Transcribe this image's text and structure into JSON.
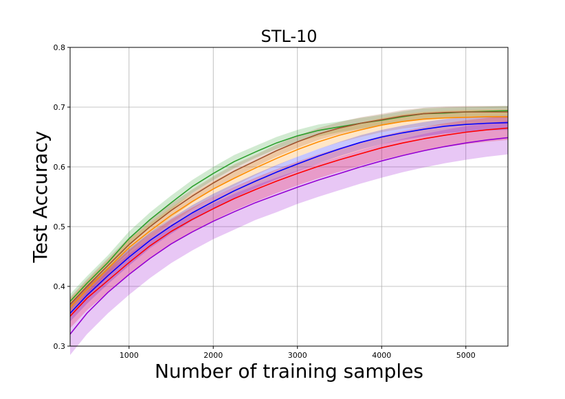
{
  "chart_data": {
    "type": "line",
    "title": "STL-10",
    "xlabel": "Number of training samples",
    "ylabel": "Test Accuracy",
    "xlim": [
      300,
      5500
    ],
    "ylim": [
      0.3,
      0.8
    ],
    "xticks": [
      1000,
      2000,
      3000,
      4000,
      5000
    ],
    "yticks": [
      0.3,
      0.4,
      0.5,
      0.6,
      0.7,
      0.8
    ],
    "xtick_labels": [
      "1000",
      "2000",
      "3000",
      "4000",
      "5000"
    ],
    "ytick_labels": [
      "0.3",
      "0.4",
      "0.5",
      "0.6",
      "0.7",
      "0.8"
    ],
    "grid": true,
    "legend": "none",
    "x": [
      300,
      500,
      750,
      1000,
      1250,
      1500,
      1750,
      2000,
      2250,
      2500,
      2750,
      3000,
      3250,
      3500,
      3750,
      4000,
      4250,
      4500,
      4750,
      5000,
      5250,
      5500
    ],
    "series": [
      {
        "color": "#2ca02c",
        "values": [
          0.375,
          0.405,
          0.44,
          0.48,
          0.512,
          0.54,
          0.567,
          0.589,
          0.609,
          0.625,
          0.64,
          0.652,
          0.661,
          0.667,
          0.673,
          0.678,
          0.684,
          0.689,
          0.69,
          0.692,
          0.693,
          0.694
        ],
        "band": [
          0.012,
          0.012,
          0.012,
          0.012,
          0.012,
          0.012,
          0.011,
          0.011,
          0.011,
          0.01,
          0.01,
          0.01,
          0.01,
          0.009,
          0.009,
          0.009,
          0.009,
          0.009,
          0.009,
          0.008,
          0.008,
          0.008
        ]
      },
      {
        "color": "#a0522d",
        "values": [
          0.37,
          0.4,
          0.435,
          0.47,
          0.5,
          0.527,
          0.551,
          0.573,
          0.593,
          0.61,
          0.627,
          0.642,
          0.655,
          0.665,
          0.673,
          0.679,
          0.685,
          0.689,
          0.691,
          0.692,
          0.692,
          0.692
        ],
        "band": [
          0.012,
          0.012,
          0.012,
          0.012,
          0.012,
          0.012,
          0.011,
          0.011,
          0.011,
          0.01,
          0.01,
          0.01,
          0.01,
          0.01,
          0.01,
          0.01,
          0.01,
          0.01,
          0.01,
          0.01,
          0.01,
          0.01
        ]
      },
      {
        "color": "#ff8c00",
        "values": [
          0.365,
          0.395,
          0.43,
          0.465,
          0.493,
          0.519,
          0.542,
          0.563,
          0.581,
          0.598,
          0.614,
          0.629,
          0.642,
          0.653,
          0.662,
          0.67,
          0.676,
          0.68,
          0.682,
          0.683,
          0.684,
          0.684
        ],
        "band": [
          0.014,
          0.014,
          0.014,
          0.014,
          0.013,
          0.013,
          0.013,
          0.013,
          0.013,
          0.012,
          0.012,
          0.012,
          0.012,
          0.012,
          0.012,
          0.012,
          0.012,
          0.012,
          0.012,
          0.012,
          0.012,
          0.012
        ]
      },
      {
        "color": "#0000ff",
        "values": [
          0.355,
          0.385,
          0.418,
          0.449,
          0.477,
          0.501,
          0.523,
          0.542,
          0.56,
          0.576,
          0.591,
          0.605,
          0.618,
          0.63,
          0.641,
          0.65,
          0.657,
          0.663,
          0.668,
          0.671,
          0.673,
          0.674
        ],
        "band": [
          0.014,
          0.014,
          0.014,
          0.014,
          0.013,
          0.013,
          0.013,
          0.013,
          0.012,
          0.012,
          0.012,
          0.012,
          0.012,
          0.012,
          0.012,
          0.012,
          0.012,
          0.012,
          0.012,
          0.012,
          0.012,
          0.012
        ]
      },
      {
        "color": "#ff0000",
        "values": [
          0.35,
          0.38,
          0.41,
          0.44,
          0.468,
          0.492,
          0.512,
          0.53,
          0.547,
          0.562,
          0.576,
          0.589,
          0.601,
          0.612,
          0.622,
          0.632,
          0.64,
          0.647,
          0.653,
          0.658,
          0.662,
          0.665
        ],
        "band": [
          0.02,
          0.02,
          0.02,
          0.02,
          0.02,
          0.02,
          0.02,
          0.02,
          0.02,
          0.02,
          0.02,
          0.02,
          0.02,
          0.02,
          0.02,
          0.02,
          0.02,
          0.02,
          0.02,
          0.02,
          0.02,
          0.02
        ]
      },
      {
        "color": "#9400d3",
        "values": [
          0.32,
          0.355,
          0.39,
          0.42,
          0.447,
          0.471,
          0.491,
          0.509,
          0.525,
          0.54,
          0.553,
          0.566,
          0.578,
          0.589,
          0.6,
          0.61,
          0.619,
          0.627,
          0.634,
          0.64,
          0.645,
          0.649
        ],
        "band": [
          0.035,
          0.035,
          0.035,
          0.034,
          0.033,
          0.032,
          0.031,
          0.03,
          0.03,
          0.029,
          0.029,
          0.028,
          0.028,
          0.028,
          0.028,
          0.028,
          0.028,
          0.028,
          0.028,
          0.028,
          0.028,
          0.028
        ]
      }
    ]
  }
}
